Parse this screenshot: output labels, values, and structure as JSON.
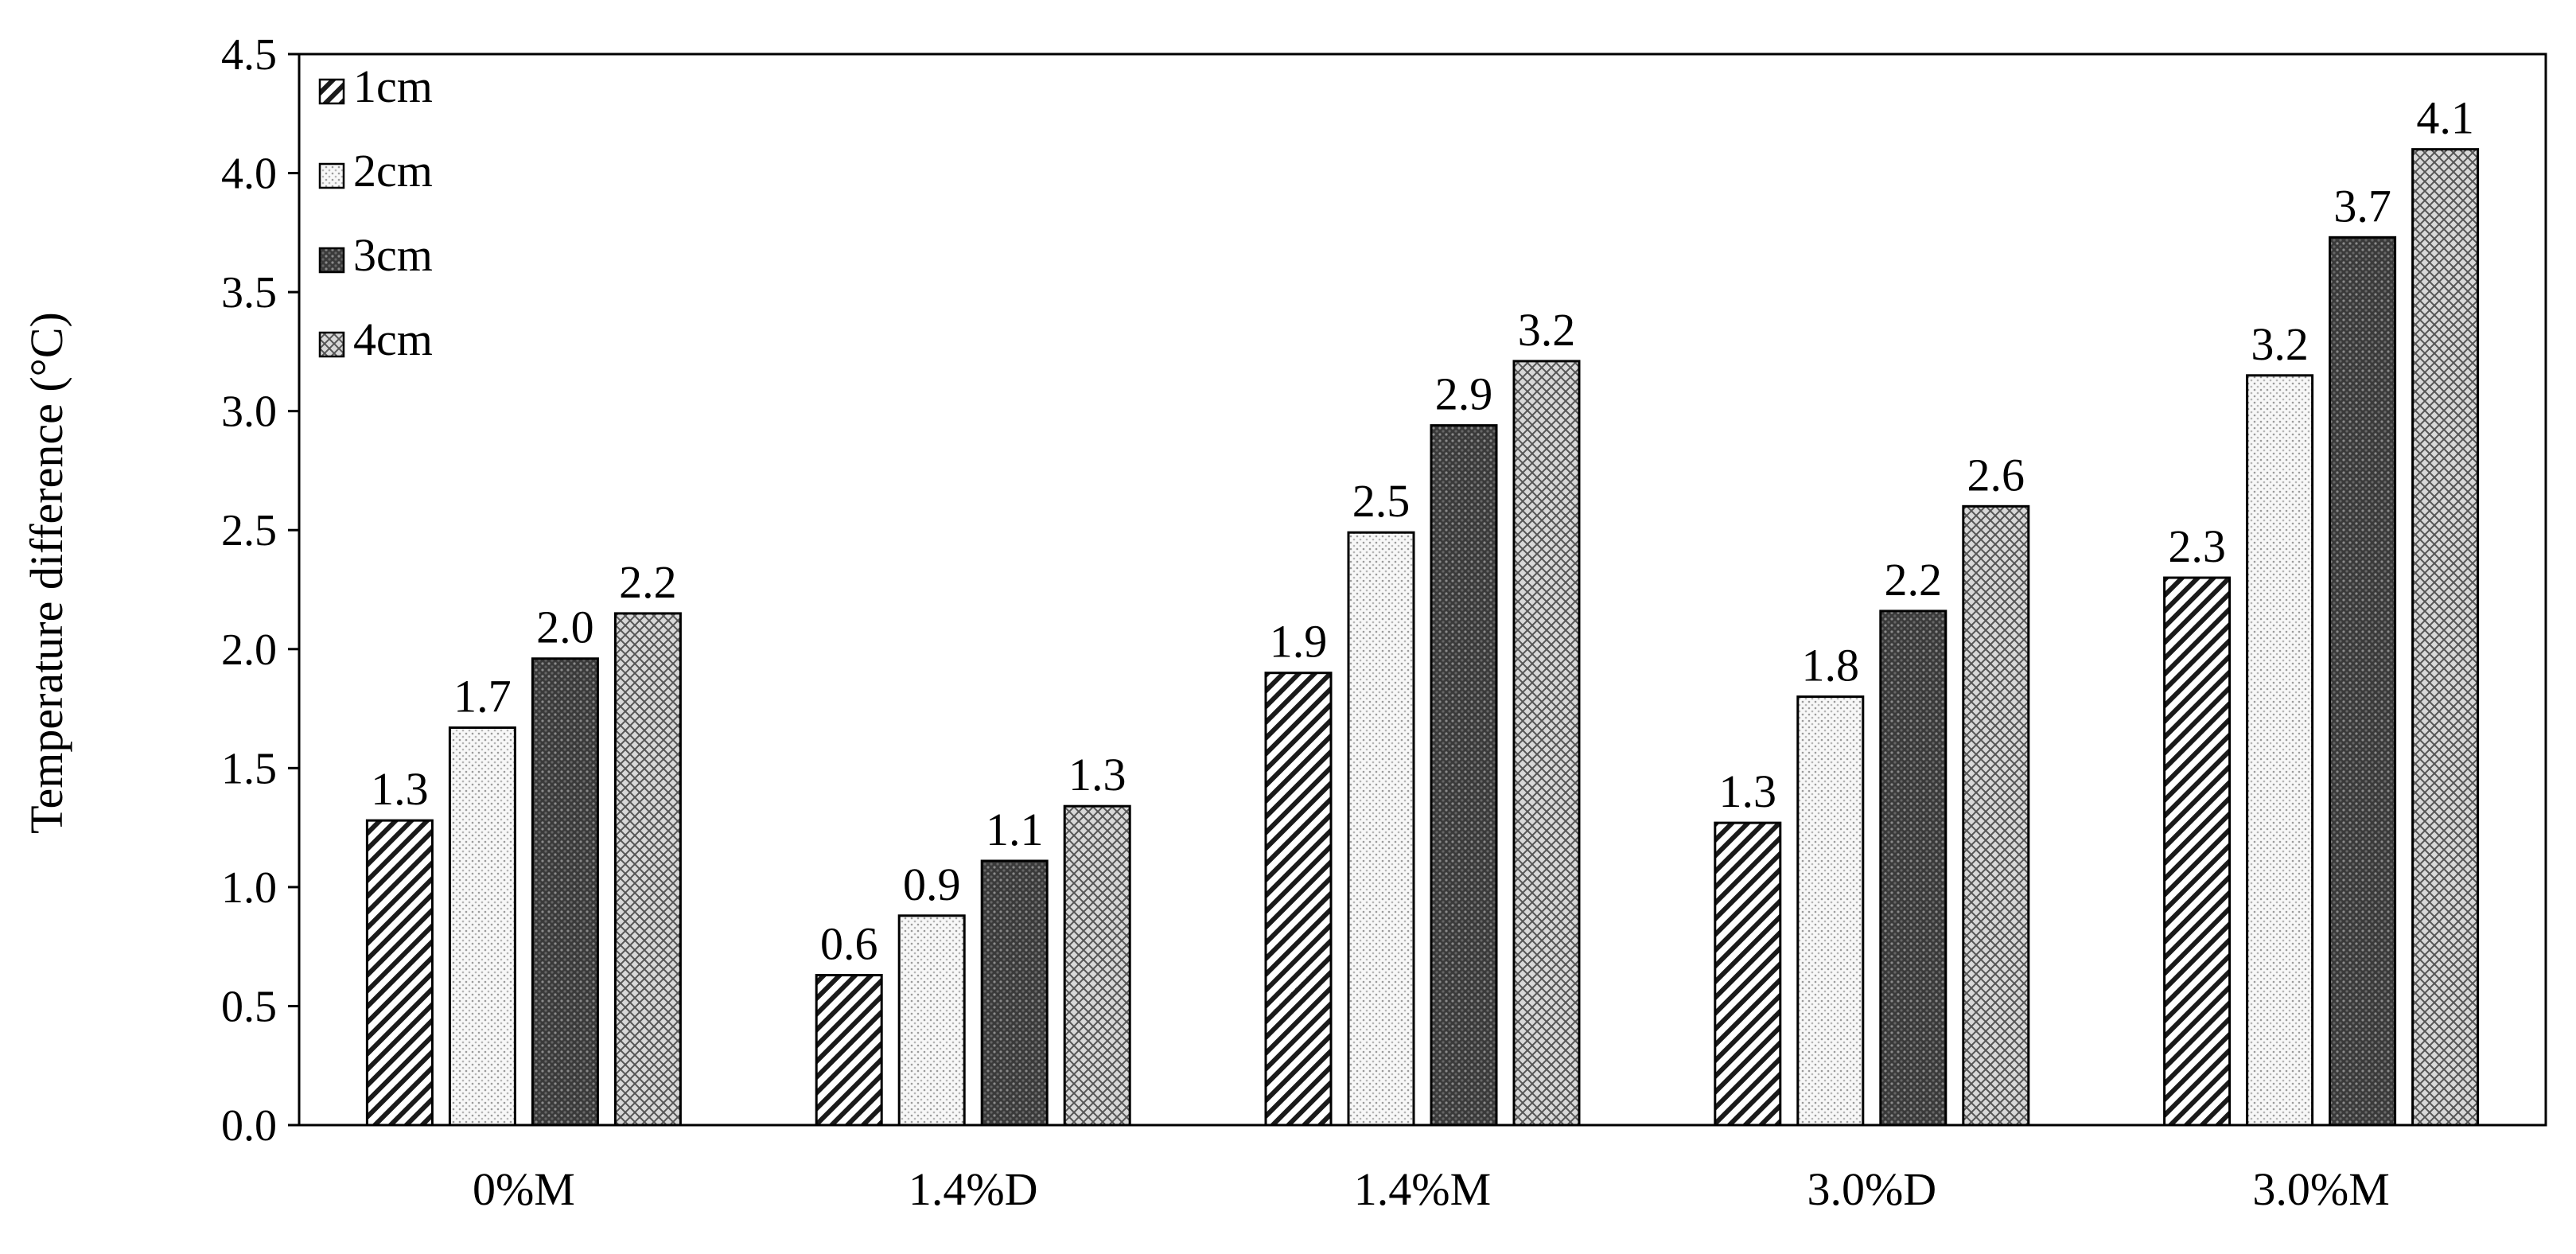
{
  "chart_data": {
    "type": "bar",
    "title": "",
    "xlabel": "",
    "ylabel": "Temperature difference (°C)",
    "ylim": [
      0,
      4.5
    ],
    "ytick_step": 0.5,
    "yticks": [
      "0.0",
      "0.5",
      "1.0",
      "1.5",
      "2.0",
      "2.5",
      "3.0",
      "3.5",
      "4.0",
      "4.5"
    ],
    "grid": false,
    "legend_position": "top-left",
    "categories": [
      "0%M",
      "1.4%D",
      "1.4%M",
      "3.0%D",
      "3.0%M"
    ],
    "series": [
      {
        "name": "1cm",
        "pattern": "diagonal-hatch",
        "values": [
          1.28,
          0.63,
          1.9,
          1.27,
          2.3
        ],
        "labels": [
          "1.3",
          "0.6",
          "1.9",
          "1.3",
          "2.3"
        ]
      },
      {
        "name": "2cm",
        "pattern": "light-dots",
        "values": [
          1.67,
          0.88,
          2.49,
          1.8,
          3.15
        ],
        "labels": [
          "1.7",
          "0.9",
          "2.5",
          "1.8",
          "3.2"
        ]
      },
      {
        "name": "3cm",
        "pattern": "dark-mesh",
        "values": [
          1.96,
          1.11,
          2.94,
          2.16,
          3.73
        ],
        "labels": [
          "2.0",
          "1.1",
          "2.9",
          "2.2",
          "3.7"
        ]
      },
      {
        "name": "4cm",
        "pattern": "crosshatch",
        "values": [
          2.15,
          1.34,
          3.21,
          2.6,
          4.1
        ],
        "labels": [
          "2.2",
          "1.3",
          "3.2",
          "2.6",
          "4.1"
        ]
      }
    ]
  }
}
